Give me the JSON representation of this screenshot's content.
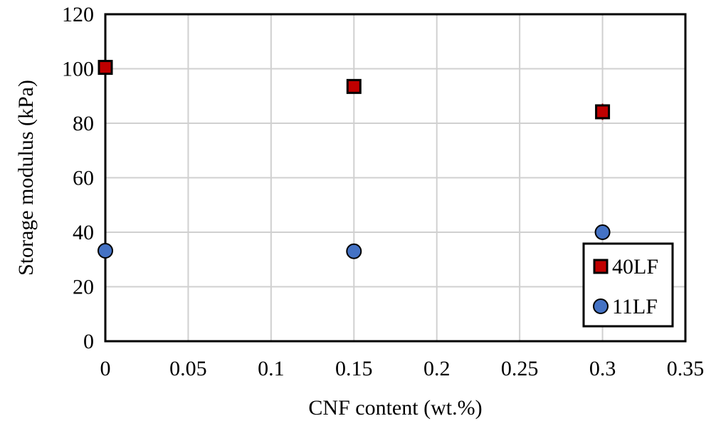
{
  "chart_data": {
    "type": "scatter",
    "xlabel": "CNF content (wt.%)",
    "ylabel": "Storage modulus (kPa)",
    "xlim": [
      0,
      0.35
    ],
    "ylim": [
      0,
      120
    ],
    "xticks": [
      0,
      0.05,
      0.1,
      0.15,
      0.2,
      0.25,
      0.3,
      0.35
    ],
    "xtick_labels": [
      "0",
      "0.05",
      "0.1",
      "0.15",
      "0.2",
      "0.25",
      "0.3",
      "0.35"
    ],
    "yticks": [
      0,
      20,
      40,
      60,
      80,
      100,
      120
    ],
    "ytick_labels": [
      "0",
      "20",
      "40",
      "60",
      "80",
      "100",
      "120"
    ],
    "grid": true,
    "legend_position": "bottom-right",
    "series": [
      {
        "name": "40LF",
        "marker": "square",
        "color": "#c00000",
        "x": [
          0,
          0.15,
          0.3
        ],
        "y": [
          100.5,
          93.5,
          84.2
        ],
        "error": [
          1.0,
          1.0,
          3.0
        ]
      },
      {
        "name": "11LF",
        "marker": "circle",
        "color": "#4472c4",
        "x": [
          0,
          0.15,
          0.3
        ],
        "y": [
          33.2,
          33.0,
          40.0
        ],
        "error": [
          0.5,
          0.5,
          0.5
        ]
      }
    ]
  }
}
